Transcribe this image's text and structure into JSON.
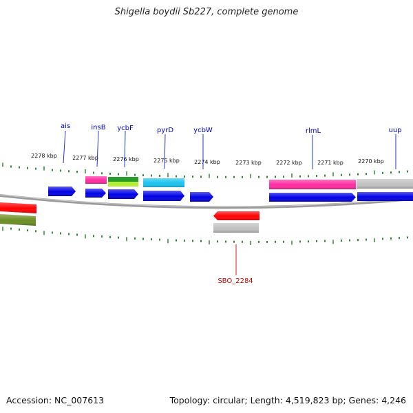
{
  "title": "Shigella boydii Sb227, complete genome",
  "accession": "Accession: NC_007613",
  "summary": "Topology: circular; Length: 4,519,823 bp; Genes: 4,246",
  "ticks": [
    "2278 kbp",
    "2277 kbp",
    "2276 kbp",
    "2275 kbp",
    "2274 kbp",
    "2273 kbp",
    "2272 kbp",
    "2271 kbp",
    "2270 kbp"
  ],
  "gene_labels": [
    {
      "id": "ais",
      "text": "ais",
      "color": "#0000cc"
    },
    {
      "id": "insB",
      "text": "insB",
      "color": "#0000cc"
    },
    {
      "id": "ycbF",
      "text": "ycbF",
      "color": "#0000cc"
    },
    {
      "id": "pyrD",
      "text": "pyrD",
      "color": "#0000cc"
    },
    {
      "id": "ycbW",
      "text": "ycbW",
      "color": "#0000cc"
    },
    {
      "id": "rlmL",
      "text": "rlmL",
      "color": "#0000cc"
    },
    {
      "id": "uup",
      "text": "uup",
      "color": "#0000cc"
    },
    {
      "id": "SBO_2284",
      "text": "SBO_2284",
      "color": "#cc0000"
    }
  ],
  "colors": {
    "cds_forward": "#0000e6",
    "cds_reverse": "#ff0000",
    "backbone": "#888888",
    "tick": "#2e8b2e",
    "pink": "#ff2aa0",
    "cyan": "#19c3f0",
    "green": "#2a9a2a",
    "lime": "#b5ee3a",
    "olive": "#6b8e23",
    "gray": "#c0c0c0"
  }
}
